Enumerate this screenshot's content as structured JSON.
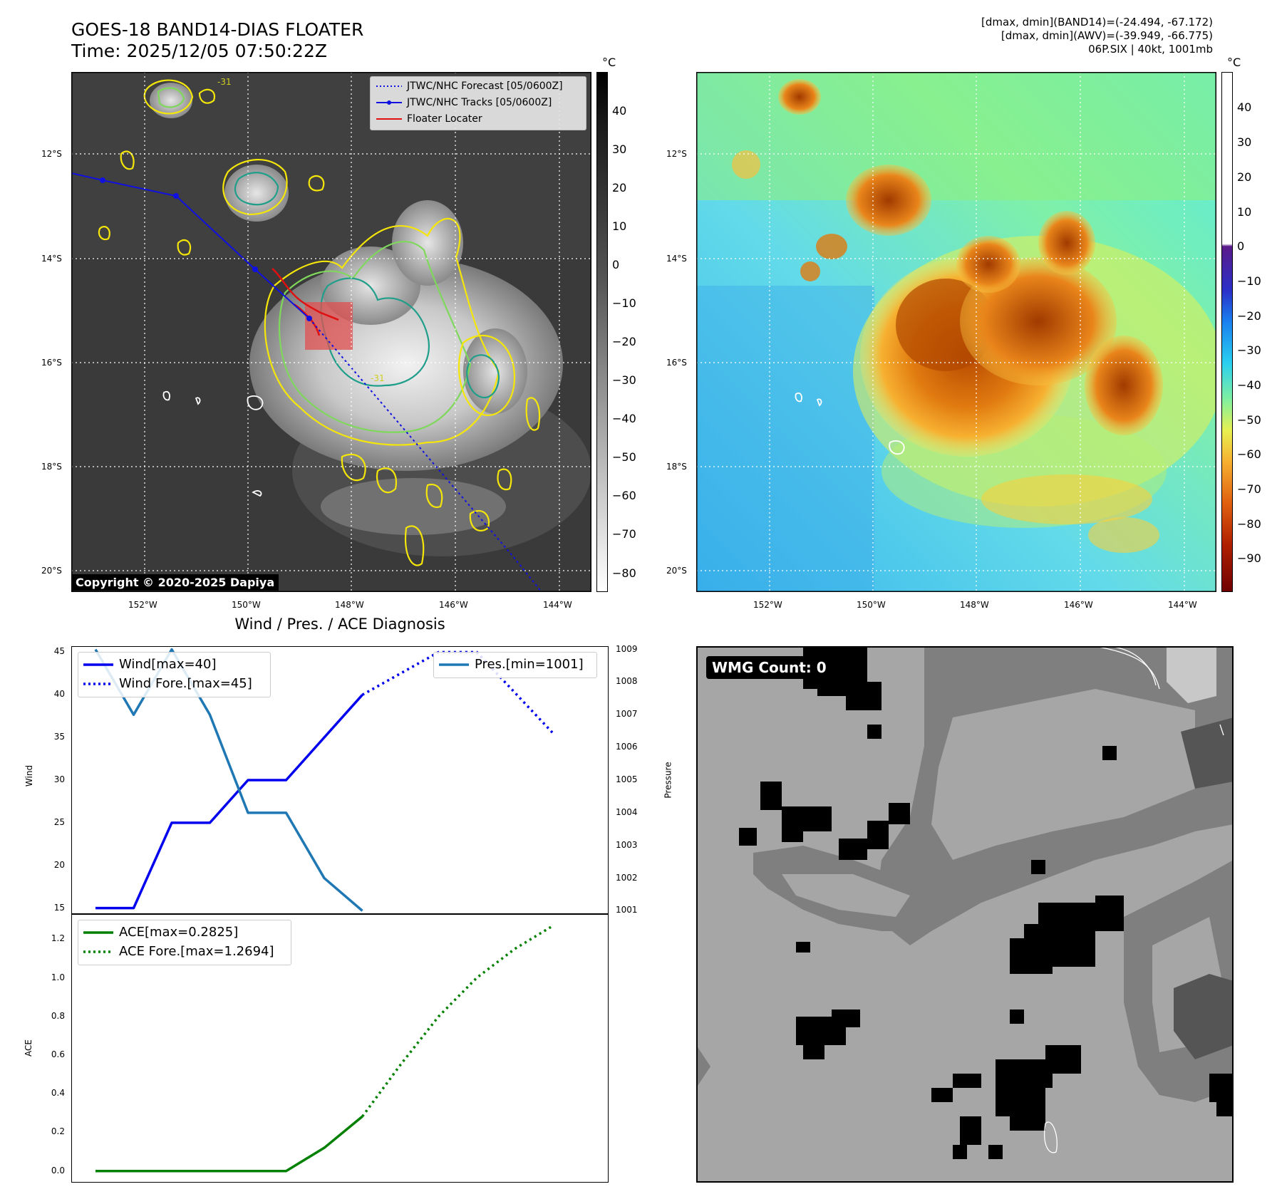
{
  "header": {
    "title_line1": "GOES-18 BAND14-DIAS FLOATER",
    "title_line2": "Time: 2025/12/05 07:50:22Z",
    "right_line1": "[dmax, dmin](BAND14)=(-24.494, -67.172)",
    "right_line2": "[dmax, dmin](AWV)=(-39.949, -66.775)",
    "right_line3": "06P.SIX | 40kt, 1001mb"
  },
  "map": {
    "lat_labels": [
      "12°S",
      "14°S",
      "16°S",
      "18°S",
      "20°S"
    ],
    "lon_labels": [
      "152°W",
      "150°W",
      "148°W",
      "146°W",
      "144°W"
    ],
    "legend": [
      "JTWC/NHC Forecast [05/0600Z]",
      "JTWC/NHC Tracks [05/0600Z]",
      "Floater Locater"
    ],
    "contour_label": "-31",
    "copyright": "Copyright © 2020-2025 Dapiya",
    "colors": {
      "track": "#1010e0",
      "locator": "#e01010",
      "contour_outer": "#f5e60a",
      "contour_mid": "#7fd85c",
      "contour_inner": "#1f9e8a"
    }
  },
  "colorbar_gray": {
    "unit": "°C",
    "ticks": [
      "40",
      "30",
      "20",
      "10",
      "0",
      "−10",
      "−20",
      "−30",
      "−40",
      "−50",
      "−60",
      "−70",
      "−80"
    ]
  },
  "colorbar_color": {
    "unit": "°C",
    "ticks": [
      "40",
      "30",
      "20",
      "10",
      "0",
      "−10",
      "−20",
      "−30",
      "−40",
      "−50",
      "−60",
      "−70",
      "−80",
      "−90"
    ]
  },
  "diag": {
    "title": "Wind / Pres. / ACE Diagnosis",
    "wind_ylabel": "Wind",
    "pres_ylabel": "Pressure",
    "ace_ylabel": "ACE",
    "wind_ticks": [
      "45",
      "40",
      "35",
      "30",
      "25",
      "20",
      "15"
    ],
    "pres_ticks": [
      "1009",
      "1008",
      "1007",
      "1006",
      "1005",
      "1004",
      "1003",
      "1002",
      "1001"
    ],
    "ace_ticks": [
      "1.2",
      "1.0",
      "0.8",
      "0.6",
      "0.4",
      "0.2",
      "0.0"
    ],
    "legend_wind": "Wind[max=40]",
    "legend_wind_fore": "Wind Fore.[max=45]",
    "legend_pres": "Pres.[min=1001]",
    "legend_ace": "ACE[max=0.2825]",
    "legend_ace_fore": "ACE Fore.[max=1.2694]"
  },
  "wmg": {
    "label": "WMG Count: 0"
  },
  "chart_data": [
    {
      "type": "line",
      "title": "Wind / Pres. / ACE Diagnosis",
      "ylabel": "Wind",
      "ylim": [
        14.3,
        45.7
      ],
      "y2label": "Pressure",
      "y2lim": [
        1000.9,
        1009.1
      ],
      "x": [
        0,
        1,
        2,
        3,
        4,
        5,
        6,
        7,
        8,
        9,
        10,
        11,
        12
      ],
      "series": [
        {
          "name": "Wind[max=40]",
          "x": [
            0,
            1,
            2,
            3,
            4,
            5,
            6,
            7
          ],
          "values": [
            15,
            15,
            25,
            25,
            30,
            30,
            35,
            40
          ],
          "color": "#0000ee",
          "style": "solid"
        },
        {
          "name": "Wind Fore.[max=45]",
          "x": [
            7,
            9,
            10,
            12
          ],
          "values": [
            40,
            45,
            45,
            35.5
          ],
          "color": "#0000ee",
          "style": "dotted"
        },
        {
          "name": "Pres.[min=1001]",
          "axis": "right",
          "x": [
            0,
            1,
            2,
            3,
            4,
            5,
            6,
            7
          ],
          "values": [
            1009,
            1007,
            1009,
            1007,
            1004,
            1004,
            1002,
            1001
          ],
          "color": "#1f77b4",
          "style": "solid"
        }
      ]
    },
    {
      "type": "line",
      "ylabel": "ACE",
      "ylim": [
        -0.06,
        1.33
      ],
      "x": [
        0,
        1,
        2,
        3,
        4,
        5,
        6,
        7,
        8,
        9,
        10,
        11,
        12
      ],
      "series": [
        {
          "name": "ACE[max=0.2825]",
          "x": [
            0,
            1,
            2,
            3,
            4,
            5,
            6,
            7
          ],
          "values": [
            0,
            0,
            0,
            0,
            0,
            0,
            0.12,
            0.2825
          ],
          "color": "#008000",
          "style": "solid"
        },
        {
          "name": "ACE Fore.[max=1.2694]",
          "x": [
            7,
            8,
            9,
            10,
            11,
            12
          ],
          "values": [
            0.2825,
            0.55,
            0.8,
            1.0,
            1.15,
            1.2694
          ],
          "color": "#008000",
          "style": "dotted"
        }
      ]
    }
  ]
}
